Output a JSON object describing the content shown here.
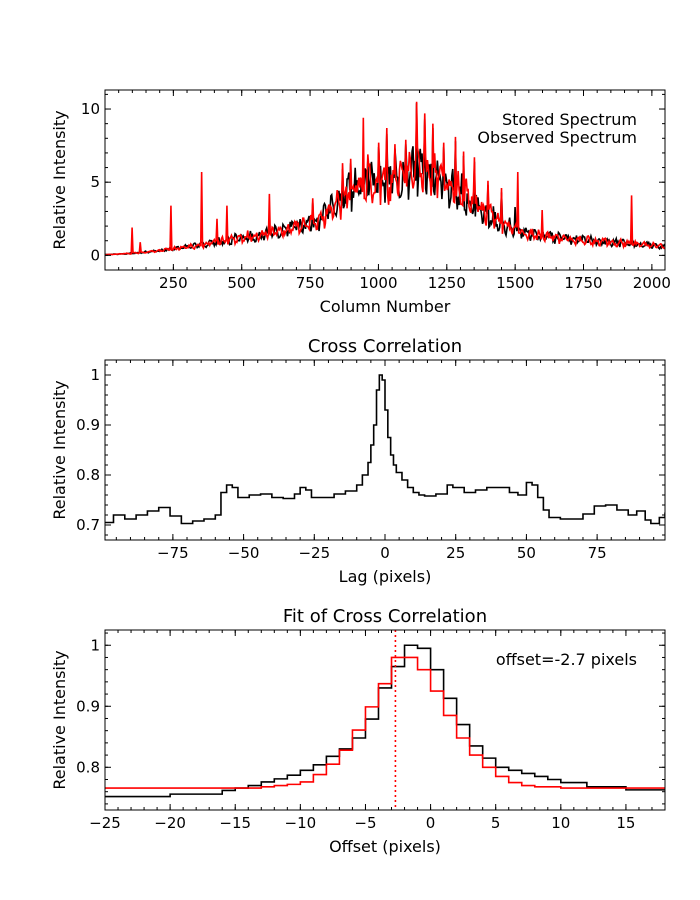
{
  "chart_data": [
    {
      "type": "line",
      "title": "",
      "xlabel": "Column Number",
      "ylabel": "Relative Intensity",
      "xlim": [
        0,
        2048
      ],
      "ylim": [
        -1.0,
        11.3
      ],
      "xticks": [
        250,
        500,
        750,
        1000,
        1250,
        1500,
        1750,
        2000
      ],
      "yticks": [
        0,
        5,
        10
      ],
      "legend_position": "top-right",
      "series": [
        {
          "name": "Stored Spectrum",
          "color": "#000000",
          "points": [
            [
              0,
              0.05
            ],
            [
              100,
              0.15
            ],
            [
              200,
              0.35
            ],
            [
              300,
              0.6
            ],
            [
              400,
              0.95
            ],
            [
              500,
              1.3
            ],
            [
              600,
              1.6
            ],
            [
              700,
              2.1
            ],
            [
              780,
              2.6
            ],
            [
              850,
              3.8
            ],
            [
              900,
              4.8
            ],
            [
              950,
              5.3
            ],
            [
              1000,
              5.4
            ],
            [
              1050,
              5.6
            ],
            [
              1100,
              6.0
            ],
            [
              1150,
              6.2
            ],
            [
              1200,
              5.8
            ],
            [
              1250,
              5.3
            ],
            [
              1300,
              4.6
            ],
            [
              1350,
              3.8
            ],
            [
              1400,
              3.0
            ],
            [
              1450,
              2.4
            ],
            [
              1500,
              1.9
            ],
            [
              1550,
              1.6
            ],
            [
              1600,
              1.4
            ],
            [
              1700,
              1.2
            ],
            [
              1800,
              1.05
            ],
            [
              1900,
              0.9
            ],
            [
              2000,
              0.75
            ],
            [
              2048,
              0.6
            ]
          ],
          "peaks": [
            [
              760,
              3.6
            ],
            [
              870,
              5.9
            ],
            [
              900,
              6.3
            ],
            [
              960,
              6.6
            ],
            [
              1000,
              7.4
            ],
            [
              1030,
              8.3
            ],
            [
              1060,
              7.3
            ],
            [
              1100,
              7.6
            ],
            [
              1140,
              10.4
            ],
            [
              1170,
              9.3
            ],
            [
              1200,
              8.7
            ],
            [
              1240,
              7.4
            ],
            [
              1280,
              7.8
            ],
            [
              1310,
              6.8
            ],
            [
              1350,
              6.4
            ],
            [
              1400,
              4.8
            ],
            [
              1450,
              4.3
            ],
            [
              1500,
              3.3
            ]
          ]
        },
        {
          "name": "Observed Spectrum",
          "color": "#ff0000",
          "points": [
            [
              0,
              0.05
            ],
            [
              100,
              0.15
            ],
            [
              200,
              0.35
            ],
            [
              300,
              0.6
            ],
            [
              400,
              0.95
            ],
            [
              500,
              1.3
            ],
            [
              600,
              1.6
            ],
            [
              700,
              2.1
            ],
            [
              780,
              2.6
            ],
            [
              850,
              3.8
            ],
            [
              900,
              4.8
            ],
            [
              950,
              5.3
            ],
            [
              1000,
              5.4
            ],
            [
              1050,
              5.6
            ],
            [
              1100,
              6.0
            ],
            [
              1150,
              6.2
            ],
            [
              1200,
              5.8
            ],
            [
              1250,
              5.3
            ],
            [
              1300,
              4.6
            ],
            [
              1350,
              3.8
            ],
            [
              1400,
              3.0
            ],
            [
              1450,
              2.4
            ],
            [
              1500,
              1.9
            ],
            [
              1550,
              1.6
            ],
            [
              1600,
              1.4
            ],
            [
              1700,
              1.2
            ],
            [
              1800,
              1.05
            ],
            [
              1900,
              0.9
            ],
            [
              2000,
              0.75
            ],
            [
              2048,
              0.6
            ]
          ],
          "peaks": [
            [
              100,
              1.9
            ],
            [
              130,
              0.9
            ],
            [
              240,
              3.4
            ],
            [
              355,
              5.7
            ],
            [
              410,
              2.5
            ],
            [
              445,
              3.4
            ],
            [
              600,
              4.2
            ],
            [
              760,
              3.9
            ],
            [
              870,
              6.3
            ],
            [
              900,
              6.6
            ],
            [
              945,
              9.4
            ],
            [
              960,
              6.9
            ],
            [
              1000,
              7.7
            ],
            [
              1030,
              8.7
            ],
            [
              1060,
              7.6
            ],
            [
              1100,
              7.9
            ],
            [
              1140,
              10.5
            ],
            [
              1170,
              9.7
            ],
            [
              1200,
              9.0
            ],
            [
              1240,
              7.7
            ],
            [
              1280,
              8.1
            ],
            [
              1310,
              7.1
            ],
            [
              1350,
              6.7
            ],
            [
              1400,
              5.1
            ],
            [
              1450,
              4.6
            ],
            [
              1510,
              5.7
            ],
            [
              1600,
              3.1
            ],
            [
              1925,
              4.1
            ]
          ]
        }
      ]
    },
    {
      "type": "line",
      "title": "Cross Correlation",
      "xlabel": "Lag (pixels)",
      "ylabel": "Relative Intensity",
      "xlim": [
        -99,
        99
      ],
      "ylim": [
        0.67,
        1.03
      ],
      "xticks": [
        -75,
        -50,
        -25,
        0,
        25,
        50,
        75
      ],
      "yticks": [
        0.7,
        0.8,
        0.9,
        1.0
      ],
      "series": [
        {
          "name": "",
          "color": "#000000",
          "step": true,
          "points": [
            [
              -99,
              0.705
            ],
            [
              -96,
              0.72
            ],
            [
              -92,
              0.712
            ],
            [
              -88,
              0.72
            ],
            [
              -84,
              0.728
            ],
            [
              -80,
              0.735
            ],
            [
              -76,
              0.718
            ],
            [
              -72,
              0.703
            ],
            [
              -68,
              0.708
            ],
            [
              -64,
              0.712
            ],
            [
              -60,
              0.72
            ],
            [
              -58,
              0.765
            ],
            [
              -56,
              0.78
            ],
            [
              -54,
              0.775
            ],
            [
              -52,
              0.755
            ],
            [
              -48,
              0.76
            ],
            [
              -44,
              0.762
            ],
            [
              -40,
              0.755
            ],
            [
              -36,
              0.753
            ],
            [
              -32,
              0.762
            ],
            [
              -30,
              0.775
            ],
            [
              -28,
              0.77
            ],
            [
              -26,
              0.755
            ],
            [
              -22,
              0.755
            ],
            [
              -18,
              0.762
            ],
            [
              -14,
              0.768
            ],
            [
              -10,
              0.78
            ],
            [
              -8,
              0.8
            ],
            [
              -6,
              0.825
            ],
            [
              -5,
              0.86
            ],
            [
              -4,
              0.9
            ],
            [
              -3,
              0.97
            ],
            [
              -2,
              1.0
            ],
            [
              -1,
              0.99
            ],
            [
              0,
              0.93
            ],
            [
              1,
              0.875
            ],
            [
              2,
              0.84
            ],
            [
              3,
              0.82
            ],
            [
              4,
              0.805
            ],
            [
              6,
              0.79
            ],
            [
              8,
              0.775
            ],
            [
              10,
              0.765
            ],
            [
              12,
              0.76
            ],
            [
              14,
              0.758
            ],
            [
              18,
              0.762
            ],
            [
              22,
              0.78
            ],
            [
              24,
              0.775
            ],
            [
              28,
              0.765
            ],
            [
              32,
              0.77
            ],
            [
              36,
              0.775
            ],
            [
              40,
              0.775
            ],
            [
              44,
              0.765
            ],
            [
              47,
              0.76
            ],
            [
              50,
              0.785
            ],
            [
              52,
              0.78
            ],
            [
              54,
              0.755
            ],
            [
              56,
              0.73
            ],
            [
              58,
              0.715
            ],
            [
              62,
              0.712
            ],
            [
              66,
              0.712
            ],
            [
              70,
              0.722
            ],
            [
              74,
              0.738
            ],
            [
              78,
              0.74
            ],
            [
              82,
              0.73
            ],
            [
              86,
              0.72
            ],
            [
              89,
              0.728
            ],
            [
              92,
              0.71
            ],
            [
              94,
              0.703
            ],
            [
              97,
              0.715
            ],
            [
              99,
              0.725
            ]
          ]
        }
      ]
    },
    {
      "type": "line",
      "title": "Fit of Cross Correlation",
      "xlabel": "Offset (pixels)",
      "ylabel": "Relative Intensity",
      "xlim": [
        -25,
        18
      ],
      "ylim": [
        0.73,
        1.025
      ],
      "xticks": [
        -25,
        -20,
        -15,
        -10,
        -5,
        0,
        5,
        10,
        15
      ],
      "yticks": [
        0.8,
        0.9,
        1.0
      ],
      "annotation": "offset=-2.7 pixels",
      "vline_x": -2.7,
      "series": [
        {
          "name": "",
          "color": "#000000",
          "step": true,
          "points": [
            [
              -25,
              0.752
            ],
            [
              -20,
              0.756
            ],
            [
              -16,
              0.762
            ],
            [
              -15,
              0.766
            ],
            [
              -14,
              0.77
            ],
            [
              -13,
              0.776
            ],
            [
              -12,
              0.781
            ],
            [
              -11,
              0.787
            ],
            [
              -10,
              0.795
            ],
            [
              -9,
              0.804
            ],
            [
              -8,
              0.818
            ],
            [
              -7,
              0.83
            ],
            [
              -6,
              0.848
            ],
            [
              -5,
              0.879
            ],
            [
              -4,
              0.93
            ],
            [
              -3,
              0.965
            ],
            [
              -2,
              1.0
            ],
            [
              -1,
              0.995
            ],
            [
              0,
              0.96
            ],
            [
              1,
              0.913
            ],
            [
              2,
              0.87
            ],
            [
              3,
              0.835
            ],
            [
              4,
              0.815
            ],
            [
              5,
              0.8
            ],
            [
              6,
              0.795
            ],
            [
              7,
              0.79
            ],
            [
              8,
              0.785
            ],
            [
              9,
              0.78
            ],
            [
              10,
              0.775
            ],
            [
              12,
              0.768
            ],
            [
              15,
              0.763
            ],
            [
              18,
              0.762
            ]
          ]
        },
        {
          "name": "",
          "color": "#ff0000",
          "step": true,
          "points": [
            [
              -25,
              0.766
            ],
            [
              -17,
              0.766
            ],
            [
              -15,
              0.766
            ],
            [
              -14,
              0.766
            ],
            [
              -13,
              0.768
            ],
            [
              -12,
              0.77
            ],
            [
              -11,
              0.772
            ],
            [
              -10,
              0.776
            ],
            [
              -9,
              0.788
            ],
            [
              -8,
              0.805
            ],
            [
              -7,
              0.828
            ],
            [
              -6,
              0.861
            ],
            [
              -5,
              0.899
            ],
            [
              -4,
              0.937
            ],
            [
              -3,
              0.98
            ],
            [
              -2,
              0.98
            ],
            [
              -1,
              0.96
            ],
            [
              0,
              0.925
            ],
            [
              1,
              0.885
            ],
            [
              2,
              0.848
            ],
            [
              3,
              0.82
            ],
            [
              4,
              0.8
            ],
            [
              5,
              0.785
            ],
            [
              6,
              0.775
            ],
            [
              7,
              0.77
            ],
            [
              8,
              0.768
            ],
            [
              10,
              0.766
            ],
            [
              18,
              0.766
            ]
          ]
        }
      ]
    }
  ]
}
